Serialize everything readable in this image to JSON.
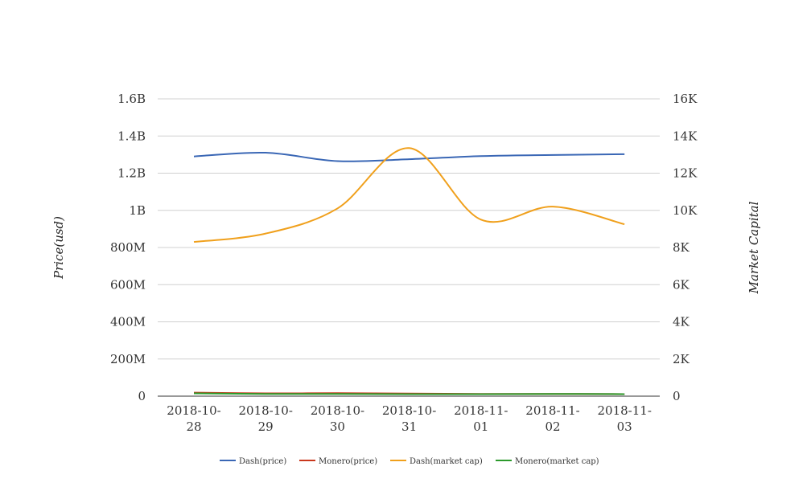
{
  "chart_data": {
    "type": "line",
    "title": "",
    "categories": [
      "2018-10-28",
      "2018-10-29",
      "2018-10-30",
      "2018-10-31",
      "2018-11-01",
      "2018-11-02",
      "2018-11-03"
    ],
    "category_labels": [
      [
        "2018-10-",
        "28"
      ],
      [
        "2018-10-",
        "29"
      ],
      [
        "2018-10-",
        "30"
      ],
      [
        "2018-10-",
        "31"
      ],
      [
        "2018-11-",
        "01"
      ],
      [
        "2018-11-",
        "02"
      ],
      [
        "2018-11-",
        "03"
      ]
    ],
    "y_left": {
      "label": "Price(usd)",
      "range": [
        0,
        1600000000
      ],
      "ticks": [
        0,
        200000000,
        400000000,
        600000000,
        800000000,
        1000000000,
        1200000000,
        1400000000,
        1600000000
      ],
      "tick_labels": [
        "0",
        "200M",
        "400M",
        "600M",
        "800M",
        "1B",
        "1.2B",
        "1.4B",
        "1.6B"
      ]
    },
    "y_right": {
      "label": "Market Capital",
      "range": [
        0,
        16000
      ],
      "ticks": [
        0,
        2000,
        4000,
        6000,
        8000,
        10000,
        12000,
        14000,
        16000
      ],
      "tick_labels": [
        "0",
        "2K",
        "4K",
        "6K",
        "8K",
        "10K",
        "12K",
        "14K",
        "16K"
      ]
    },
    "grid": true,
    "legend_position": "bottom",
    "series": [
      {
        "name": "Dash(price)",
        "color": "#3a67b5",
        "axis": "left",
        "values": [
          1290000000,
          1310000000,
          1265000000,
          1275000000,
          1292000000,
          1298000000,
          1302000000
        ]
      },
      {
        "name": "Monero(price)",
        "color": "#c9381d",
        "axis": "left",
        "values": [
          19000000,
          15000000,
          16000000,
          14000000,
          12000000,
          12000000,
          11000000
        ]
      },
      {
        "name": "Dash(market cap)",
        "color": "#f0a01c",
        "axis": "right",
        "values": [
          8300,
          8750,
          10100,
          13350,
          9500,
          10200,
          9250
        ]
      },
      {
        "name": "Monero(market cap)",
        "color": "#2c9a2c",
        "axis": "right",
        "values": [
          150,
          120,
          120,
          110,
          110,
          120,
          110
        ]
      }
    ]
  }
}
